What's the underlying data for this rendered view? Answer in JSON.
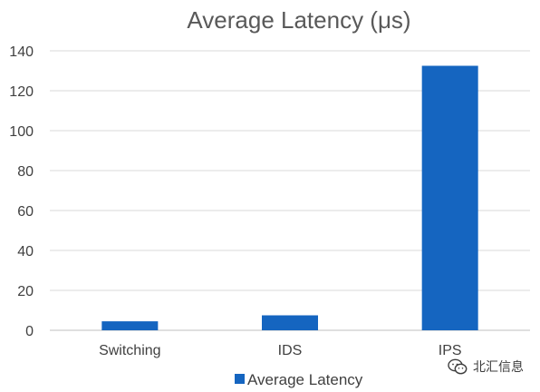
{
  "chart_data": {
    "type": "bar",
    "title": "Average Latency (μs)",
    "categories": [
      "Switching",
      "IDS",
      "IPS"
    ],
    "series": [
      {
        "name": "Average Latency",
        "values": [
          4.5,
          7.5,
          132.5
        ]
      }
    ],
    "ylim": [
      0,
      140
    ],
    "yticks": [
      0,
      20,
      40,
      60,
      80,
      100,
      120,
      140
    ],
    "xlabel": "",
    "ylabel": "",
    "grid": true,
    "legend_position": "bottom-center",
    "colors": {
      "bar": "#1565C0",
      "grid": "#D9D9D9",
      "axis": "#BFBFBF"
    }
  },
  "watermark": {
    "icon": "wechat-icon",
    "text": "北汇信息"
  }
}
